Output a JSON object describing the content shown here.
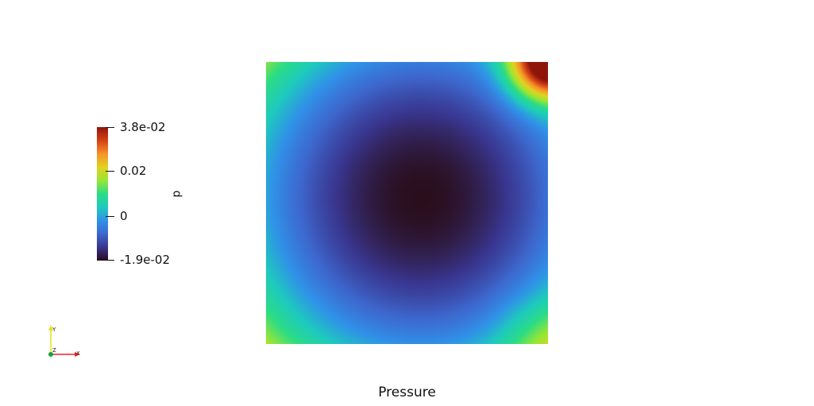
{
  "window": {
    "plot_title": "Pressure"
  },
  "colorbar": {
    "title": "p",
    "range": [
      -0.019,
      0.038
    ],
    "labels": {
      "max": "3.8e-02",
      "mid_high": "0.02",
      "zero": "0",
      "min": "-1.9e-02"
    },
    "colormap_stops": [
      "#2a0e1c",
      "#39368f",
      "#3d67cd",
      "#3091e8",
      "#1ecabe",
      "#2bdc86",
      "#98e634",
      "#e2d21f",
      "#f5922a",
      "#d44214",
      "#8f150b"
    ]
  },
  "orientation_axes": {
    "x_label": "X",
    "y_label": "Y",
    "z_label": "Z",
    "x_color": "#e8212b",
    "y_color": "#e8e223",
    "z_color": "#16a23a"
  }
}
